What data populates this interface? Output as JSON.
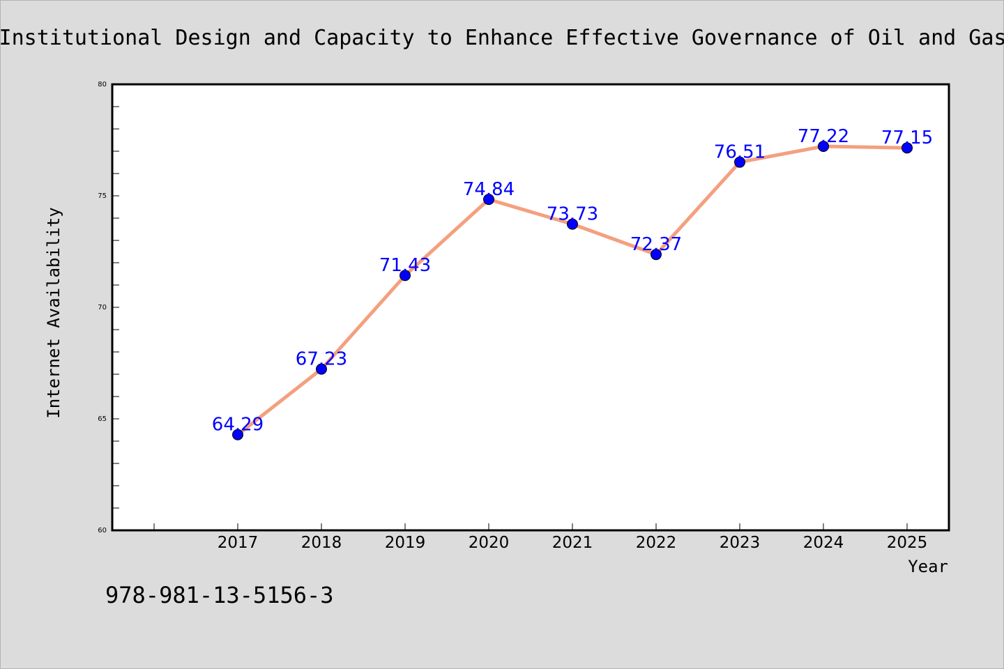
{
  "chart_data": {
    "type": "line",
    "title": "Institutional Design and Capacity to Enhance Effective Governance of Oil and Gas",
    "xlabel": "Year",
    "ylabel": "Internet Availability",
    "categories": [
      "2017",
      "2018",
      "2019",
      "2020",
      "2021",
      "2022",
      "2023",
      "2024",
      "2025"
    ],
    "series": [
      {
        "values": [
          64.29,
          67.23,
          71.43,
          74.84,
          73.73,
          72.37,
          76.51,
          77.22,
          77.15
        ],
        "labels": [
          "64.29",
          "67.23",
          "71.43",
          "74.84",
          "73.73",
          "72.37",
          "76.51",
          "77.22",
          "77.15"
        ],
        "line_color": "#f4a07e",
        "marker_color": "#0000ff"
      }
    ],
    "ylim": [
      60,
      80
    ],
    "y_ticks": [
      "60",
      "65",
      "70",
      "75",
      "80"
    ],
    "grid": false,
    "legend": "none"
  },
  "footer": {
    "isbn": "978-981-13-5156-3"
  }
}
